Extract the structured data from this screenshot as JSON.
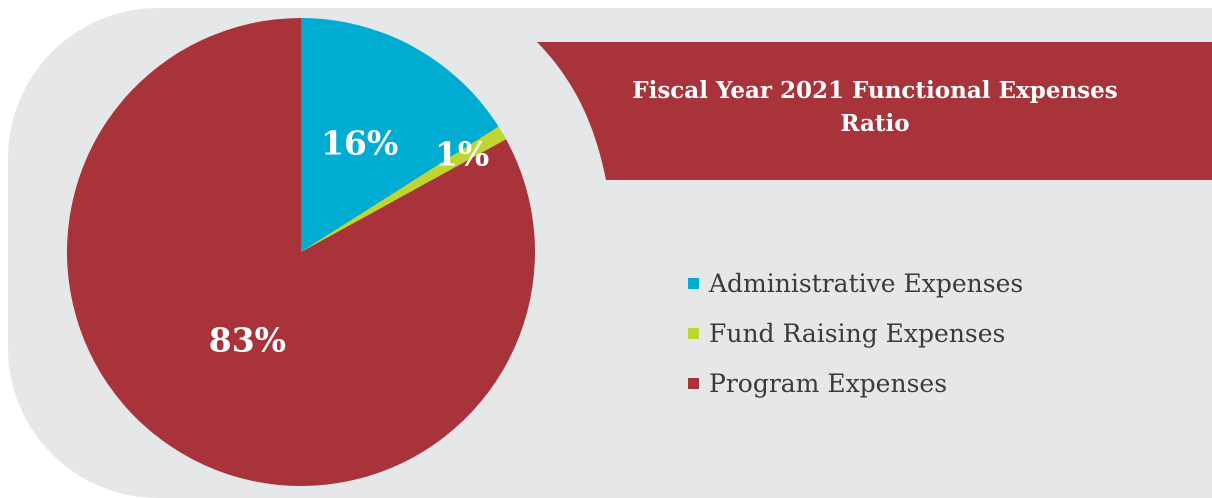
{
  "chart_data": {
    "type": "pie",
    "title": "Fiscal Year 2021 Functional Expenses Ratio",
    "legend_placement": "right",
    "slices": [
      {
        "name": "Administrative Expenses",
        "label": "16%",
        "value": 16,
        "color": "#00acd2"
      },
      {
        "name": "Fund Raising Expenses",
        "label": "1%",
        "value": 1,
        "color": "#bfd630"
      },
      {
        "name": "Program Expenses",
        "label": "83%",
        "value": 83,
        "color": "#a8333a"
      }
    ]
  },
  "colors": {
    "panel_background": "#e6e7e8",
    "title_banner": "#a8333a"
  }
}
